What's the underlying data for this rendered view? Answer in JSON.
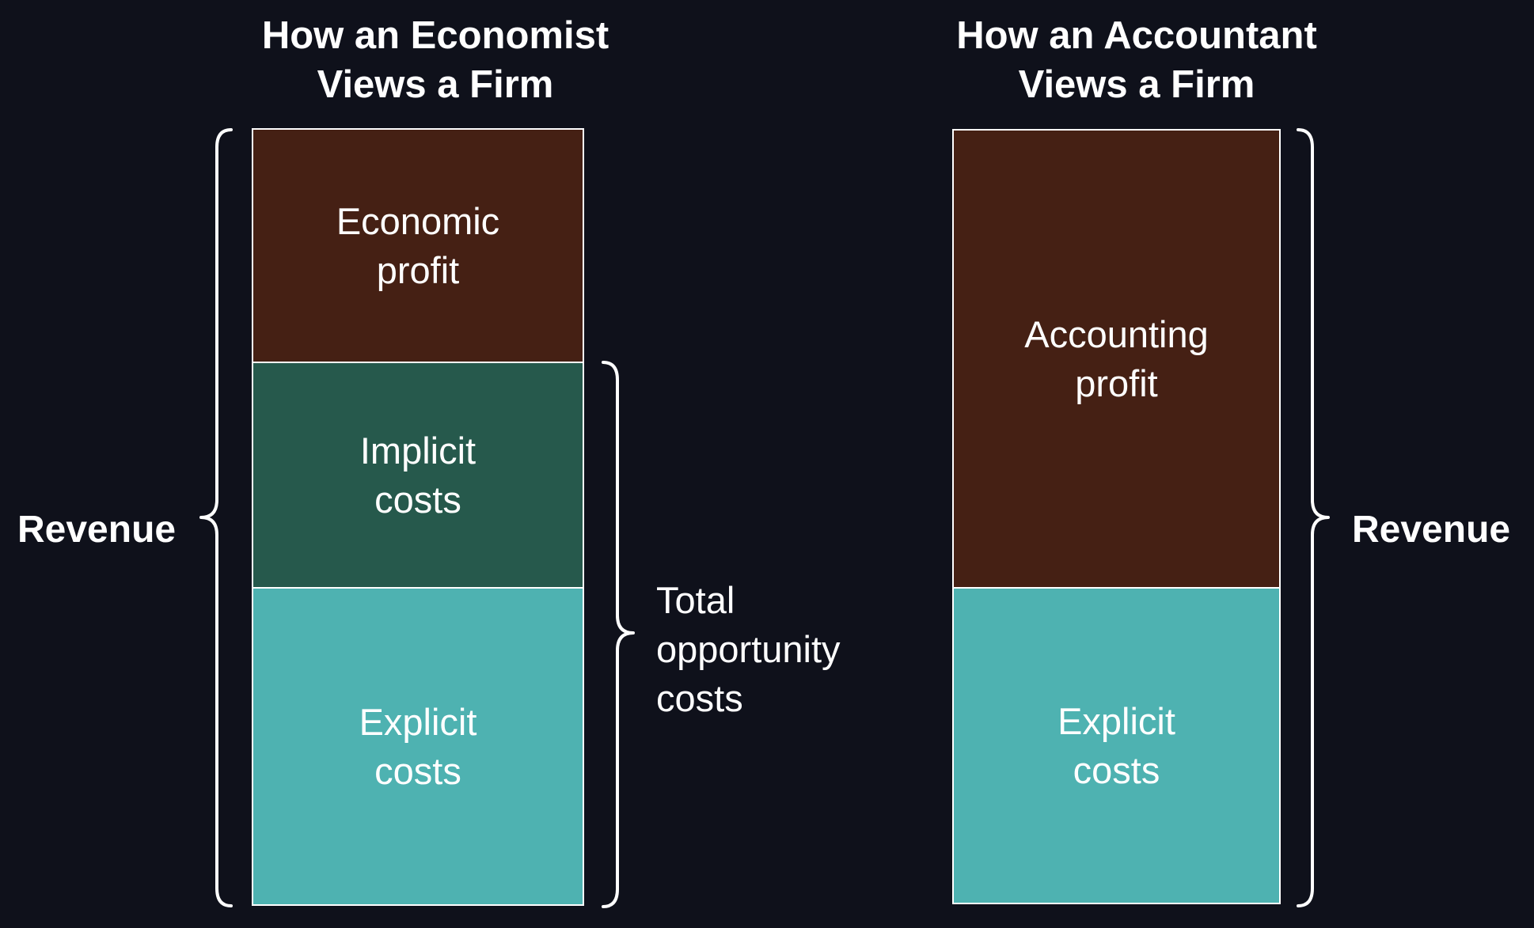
{
  "colors": {
    "background": "#0f111b",
    "profit": "#452014",
    "implicit": "#26594c",
    "explicit": "#4eb2b1",
    "text": "#ffffff"
  },
  "economist": {
    "title": "How an Economist\nViews a Firm",
    "blocks": {
      "profit": "Economic\nprofit",
      "implicit": "Implicit\ncosts",
      "explicit": "Explicit\ncosts"
    },
    "revenue_label": "Revenue",
    "opportunity_label": "Total\nopportunity\ncosts"
  },
  "accountant": {
    "title": "How an Accountant\nViews a Firm",
    "blocks": {
      "profit": "Accounting\nprofit",
      "explicit": "Explicit\ncosts"
    },
    "revenue_label": "Revenue"
  }
}
